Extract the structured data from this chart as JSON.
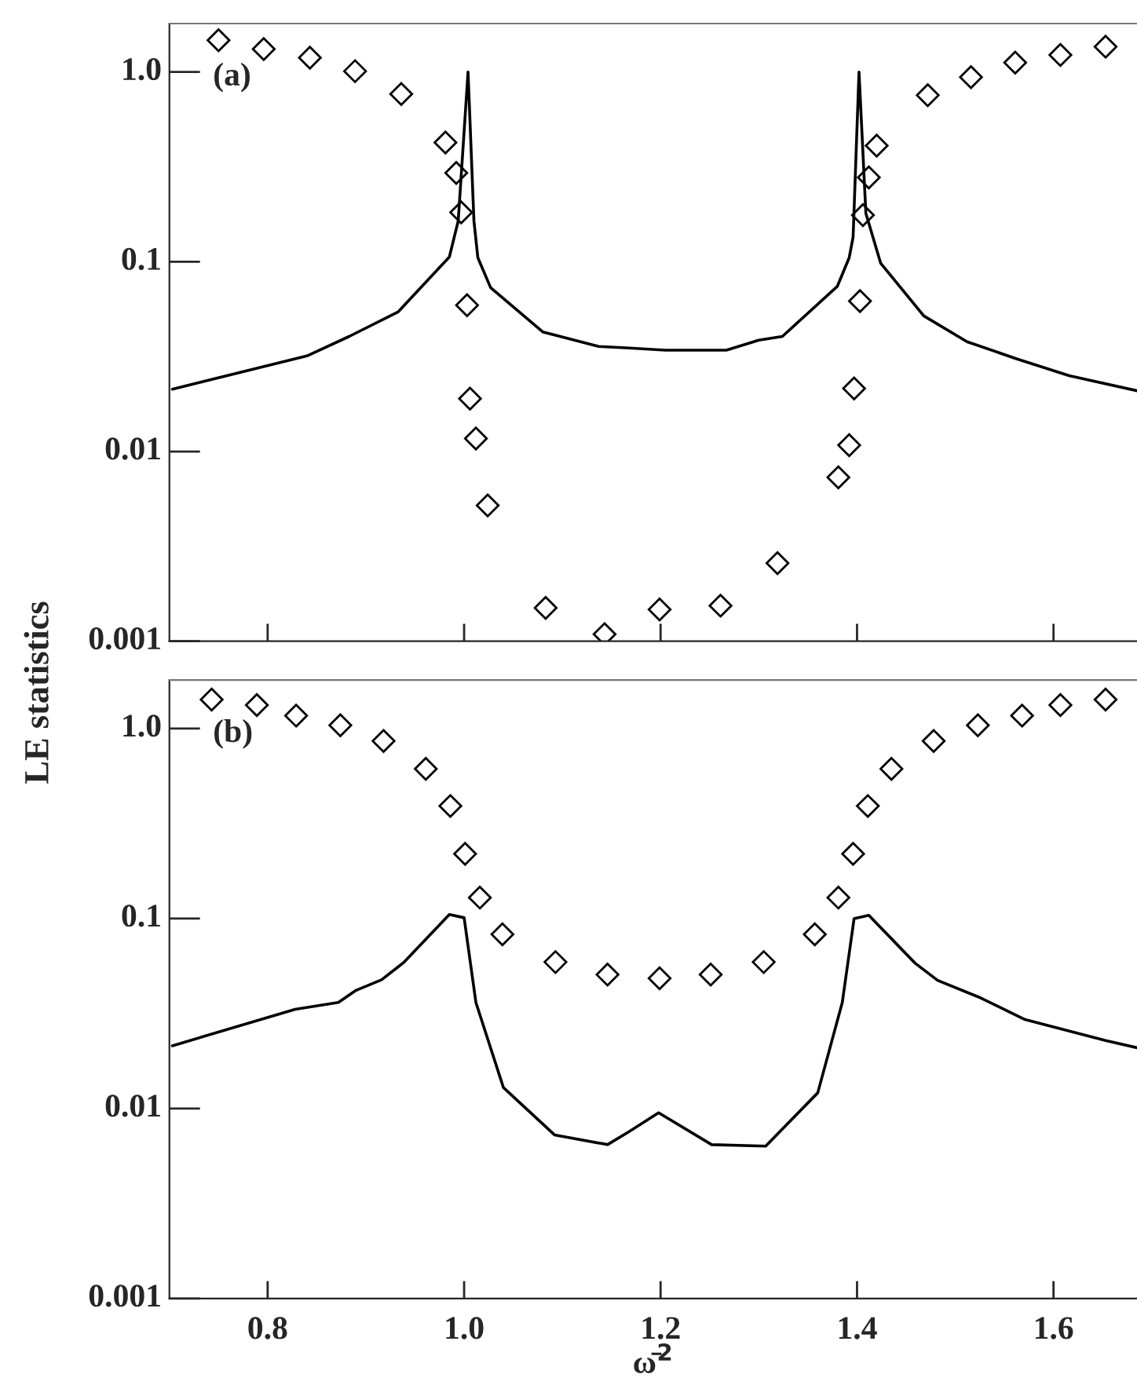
{
  "chart_data": [
    {
      "type": "line",
      "ylabel": "LE statistics",
      "annotations": [
        "(a)"
      ],
      "log": "y",
      "xlim": [
        0.7,
        1.685
      ],
      "xticks": [
        0.8,
        1.0,
        1.2,
        1.4,
        1.6
      ],
      "ylim": [
        0.001,
        1.8
      ],
      "yticks": [
        {
          "value": 0.001,
          "label": "0.001"
        },
        {
          "value": 0.01,
          "label": "0.01"
        },
        {
          "value": 0.1,
          "label": "0.1"
        },
        {
          "value": 1.0,
          "label": "1.0"
        }
      ],
      "tick_labels": "y",
      "grid": false,
      "legend": false,
      "series": [
        {
          "type": "scatter",
          "marker": "diamond",
          "color": "#000000",
          "x": [
            0.75,
            0.796,
            0.843,
            0.889,
            0.936,
            0.981,
            0.992,
            0.997,
            1.003,
            1.006,
            1.012,
            1.024,
            1.083,
            1.143,
            1.199,
            1.261,
            1.319,
            1.381,
            1.392,
            1.397,
            1.403,
            1.406,
            1.412,
            1.42,
            1.472,
            1.516,
            1.561,
            1.607,
            1.653
          ],
          "values": [
            1.47,
            1.32,
            1.19,
            1.01,
            0.765,
            0.425,
            0.294,
            0.182,
            0.059,
            0.019,
            0.0117,
            0.0052,
            0.0015,
            0.00109,
            0.00147,
            0.00154,
            0.00258,
            0.0073,
            0.0108,
            0.0215,
            0.062,
            0.176,
            0.278,
            0.409,
            0.755,
            0.94,
            1.12,
            1.23,
            1.36
          ]
        },
        {
          "type": "line",
          "marker": "none",
          "line_style": "solid",
          "color": "#000000",
          "x": [
            0.703,
            0.84,
            0.883,
            0.933,
            0.985,
            0.994,
            1.004,
            1.01,
            1.014,
            1.027,
            1.08,
            1.137,
            1.168,
            1.205,
            1.267,
            1.3,
            1.324,
            1.38,
            1.392,
            1.396,
            1.402,
            1.409,
            1.424,
            1.468,
            1.512,
            1.563,
            1.616,
            1.685
          ],
          "values": [
            0.0213,
            0.0319,
            0.0404,
            0.0545,
            0.106,
            0.164,
            1.0,
            0.164,
            0.105,
            0.073,
            0.0427,
            0.0358,
            0.0351,
            0.0342,
            0.0342,
            0.0386,
            0.0404,
            0.0743,
            0.105,
            0.135,
            1.0,
            0.18,
            0.0984,
            0.0518,
            0.0379,
            0.0307,
            0.0251,
            0.0209
          ]
        }
      ]
    },
    {
      "type": "line",
      "xlabel": "ω̄$^{2}$",
      "annotations": [
        "(b)"
      ],
      "log": "y",
      "xlim": [
        0.7,
        1.685
      ],
      "xticks": [
        {
          "value": 0.8,
          "label": "0.8"
        },
        {
          "value": 1.0,
          "label": "1.0"
        },
        {
          "value": 1.2,
          "label": "1.2"
        },
        {
          "value": 1.4,
          "label": "1.4"
        },
        {
          "value": 1.6,
          "label": "1.6"
        }
      ],
      "ylim": [
        0.001,
        1.8
      ],
      "yticks": [
        {
          "value": 0.001,
          "label": "0.001"
        },
        {
          "value": 0.01,
          "label": "0.01"
        },
        {
          "value": 0.1,
          "label": "0.1"
        },
        {
          "value": 1.0,
          "label": "1.0"
        }
      ],
      "grid": false,
      "legend": false,
      "series": [
        {
          "type": "scatter",
          "marker": "diamond",
          "color": "#000000",
          "x": [
            0.743,
            0.789,
            0.829,
            0.874,
            0.918,
            0.961,
            0.986,
            1.001,
            1.016,
            1.039,
            1.093,
            1.146,
            1.199,
            1.251,
            1.305,
            1.357,
            1.381,
            1.396,
            1.411,
            1.435,
            1.478,
            1.523,
            1.568,
            1.607,
            1.653
          ],
          "values": [
            1.42,
            1.33,
            1.17,
            1.04,
            0.86,
            0.614,
            0.391,
            0.219,
            0.129,
            0.0826,
            0.059,
            0.0507,
            0.0485,
            0.0507,
            0.059,
            0.0826,
            0.129,
            0.219,
            0.391,
            0.614,
            0.86,
            1.04,
            1.17,
            1.33,
            1.42
          ]
        },
        {
          "type": "line",
          "marker": "none",
          "line_style": "solid",
          "color": "#000000",
          "x": [
            0.703,
            0.828,
            0.872,
            0.89,
            0.916,
            0.939,
            0.985,
            1.0,
            1.012,
            1.04,
            1.092,
            1.146,
            1.168,
            1.198,
            1.252,
            1.307,
            1.36,
            1.385,
            1.397,
            1.412,
            1.459,
            1.482,
            1.524,
            1.571,
            1.653,
            1.685
          ],
          "values": [
            0.0214,
            0.0333,
            0.0362,
            0.0419,
            0.0476,
            0.059,
            0.105,
            0.101,
            0.0362,
            0.0129,
            0.00727,
            0.00646,
            0.00757,
            0.0095,
            0.00646,
            0.00634,
            0.0121,
            0.0362,
            0.1,
            0.104,
            0.0583,
            0.0473,
            0.0386,
            0.0294,
            0.0228,
            0.0209
          ]
        }
      ]
    }
  ]
}
